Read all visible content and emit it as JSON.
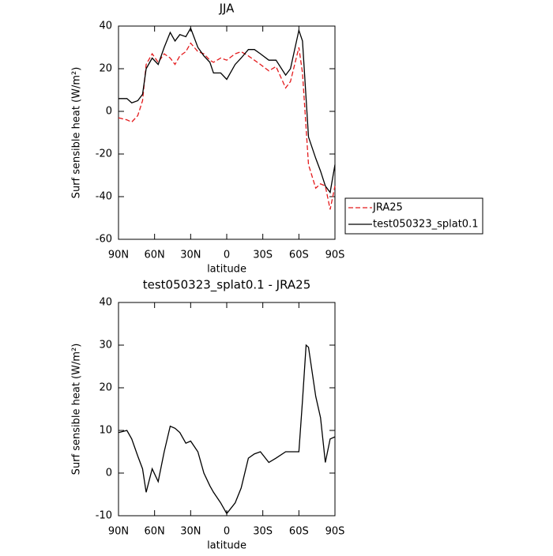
{
  "chart_data": [
    {
      "type": "line",
      "title": "JJA",
      "xlabel": "latitude",
      "ylabel": "Surf sensible heat (W/m²)",
      "x": [
        90,
        83,
        79,
        74,
        70,
        67,
        62,
        57,
        52,
        47,
        43,
        39,
        34,
        30,
        24,
        19,
        14,
        11,
        5,
        0,
        -7,
        -12,
        -18,
        -23,
        -28,
        -35,
        -41,
        -49,
        -53,
        -60,
        -63,
        -68,
        -74,
        -78,
        -82,
        -86,
        -90
      ],
      "series": [
        {
          "name": "JRA25",
          "color": "#e41a1c",
          "dash": true,
          "values": [
            -3,
            -4,
            -5,
            -2,
            5,
            22,
            27,
            23,
            27,
            25,
            22,
            26,
            28,
            32,
            28,
            27,
            24,
            23,
            25,
            24,
            27,
            28,
            26,
            24,
            22,
            19,
            21,
            11,
            14,
            30,
            18,
            -25,
            -36,
            -34,
            -35,
            -46,
            -35
          ]
        },
        {
          "name": "test050323_splat0.1",
          "color": "#000000",
          "dash": false,
          "values": [
            6,
            6,
            4,
            5,
            8,
            20,
            25,
            22,
            30,
            37,
            33,
            36,
            35,
            39,
            30,
            26,
            23,
            18,
            18,
            15,
            22,
            25,
            29,
            29,
            27,
            24,
            24,
            17,
            20,
            38,
            33,
            -12,
            -22,
            -28,
            -35,
            -38,
            -25
          ]
        }
      ],
      "xlim": [
        90,
        -90
      ],
      "xticks": [
        {
          "value": 90,
          "label": "90N"
        },
        {
          "value": 60,
          "label": "60N"
        },
        {
          "value": 30,
          "label": "30N"
        },
        0,
        {
          "value": -30,
          "label": "30S"
        },
        {
          "value": -60,
          "label": "60S"
        },
        {
          "value": -90,
          "label": "90S"
        }
      ],
      "ylim": [
        -60,
        40
      ],
      "yticks": [
        -60,
        -40,
        -20,
        0,
        20,
        40
      ],
      "legend": "right"
    },
    {
      "type": "line",
      "title": "test050323_splat0.1 - JRA25",
      "xlabel": "latitude",
      "ylabel": "Surf sensible heat (W/m²)",
      "x": [
        90,
        83,
        79,
        74,
        70,
        67,
        62,
        57,
        52,
        47,
        43,
        39,
        34,
        30,
        24,
        19,
        14,
        11,
        5,
        0,
        -7,
        -12,
        -18,
        -23,
        -28,
        -35,
        -41,
        -49,
        -53,
        -60,
        -63,
        -66,
        -68,
        -74,
        -78,
        -82,
        -86,
        -90
      ],
      "values": [
        9.5,
        10,
        8,
        4,
        1,
        -4.5,
        1,
        -2,
        5,
        11,
        10.5,
        9.5,
        7,
        7.5,
        5,
        0,
        -3,
        -4.5,
        -7,
        -9.5,
        -7,
        -3.5,
        3.5,
        4.5,
        5,
        2.5,
        3.5,
        5,
        5,
        5,
        17,
        30,
        29.5,
        18,
        13,
        2.5,
        8,
        8.5
      ],
      "color": "#000000",
      "xlim": [
        90,
        -90
      ],
      "xticks": [
        {
          "value": 90,
          "label": "90N"
        },
        {
          "value": 60,
          "label": "60N"
        },
        {
          "value": 30,
          "label": "30N"
        },
        0,
        {
          "value": -30,
          "label": "30S"
        },
        {
          "value": -60,
          "label": "60S"
        },
        {
          "value": -90,
          "label": "90S"
        }
      ],
      "ylim": [
        -10,
        40
      ],
      "yticks": [
        -10,
        0,
        10,
        20,
        30,
        40
      ]
    }
  ]
}
